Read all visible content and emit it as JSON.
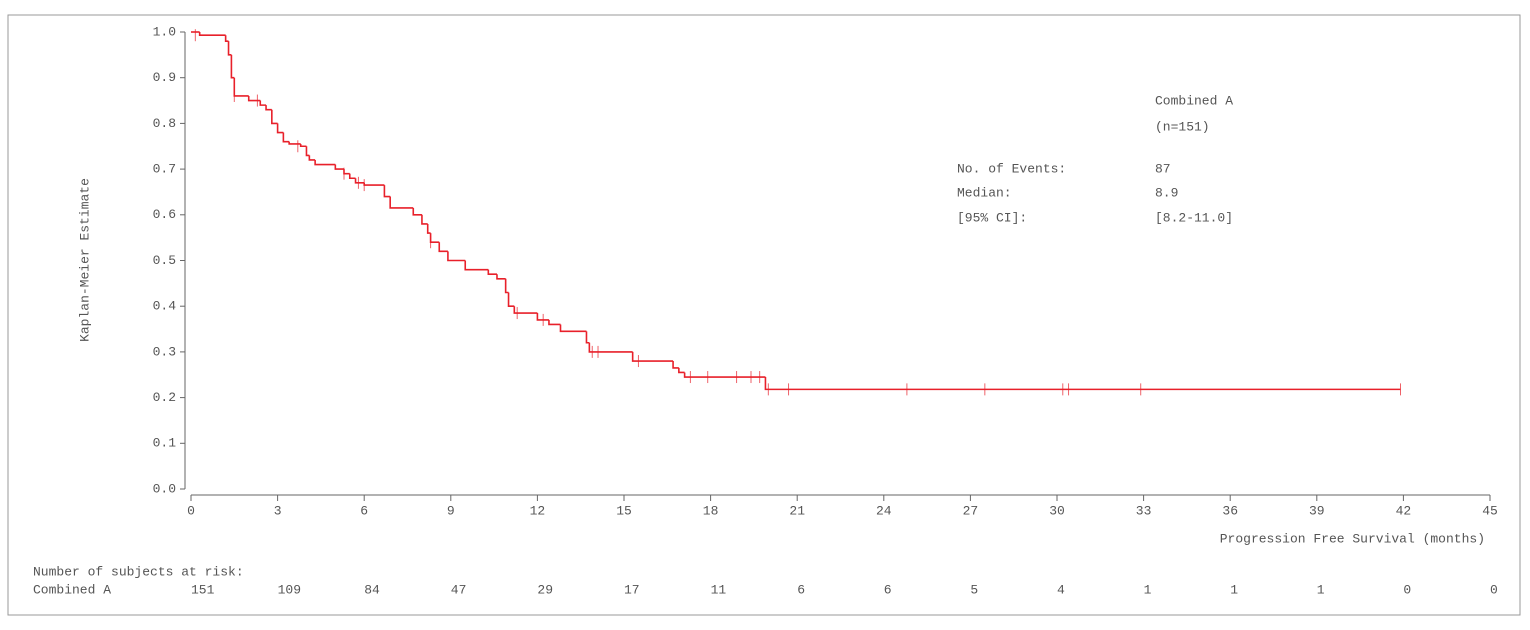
{
  "chart_data": {
    "type": "step",
    "ylabel": "Kaplan-Meier Estimate",
    "xlabel": "Progression Free Survival (months)",
    "xlim": [
      0,
      45
    ],
    "xticks": [
      0,
      3,
      6,
      9,
      12,
      15,
      18,
      21,
      24,
      27,
      30,
      33,
      36,
      39,
      42,
      45
    ],
    "ylim": [
      0,
      1
    ],
    "yticks": [
      {
        "value": 0,
        "label": "0.0"
      },
      0.1,
      0.2,
      0.3,
      0.4,
      0.5,
      0.6,
      0.7,
      0.8,
      0.9,
      {
        "value": 1,
        "label": "1.0"
      }
    ],
    "grid": false,
    "series": [
      {
        "name": "Combined A",
        "color": "#e8202a",
        "x": [
          0,
          0.3,
          1.2,
          1.3,
          1.4,
          1.5,
          2.0,
          2.4,
          2.6,
          2.8,
          3.0,
          3.2,
          3.4,
          3.8,
          4.0,
          4.1,
          4.3,
          5.0,
          5.3,
          5.5,
          5.7,
          6.0,
          6.7,
          6.9,
          7.7,
          8.0,
          8.2,
          8.3,
          8.6,
          8.9,
          9.5,
          10.3,
          10.6,
          10.9,
          11.0,
          11.2,
          12.0,
          12.4,
          12.8,
          13.7,
          13.8,
          15.3,
          16.7,
          16.9,
          17.1,
          19.9,
          41.9
        ],
        "values": [
          1.0,
          0.993,
          0.98,
          0.95,
          0.9,
          0.86,
          0.85,
          0.84,
          0.83,
          0.8,
          0.78,
          0.76,
          0.755,
          0.75,
          0.73,
          0.72,
          0.71,
          0.7,
          0.69,
          0.68,
          0.67,
          0.665,
          0.64,
          0.615,
          0.6,
          0.58,
          0.56,
          0.54,
          0.52,
          0.5,
          0.48,
          0.47,
          0.46,
          0.43,
          0.4,
          0.385,
          0.37,
          0.36,
          0.345,
          0.32,
          0.3,
          0.28,
          0.265,
          0.255,
          0.245,
          0.218,
          0.218
        ],
        "censored_x": [
          0.15,
          1.5,
          2.3,
          3.7,
          5.3,
          5.8,
          6.0,
          8.3,
          11.3,
          12.2,
          13.9,
          14.1,
          15.5,
          17.3,
          17.9,
          18.9,
          19.4,
          19.7,
          20.0,
          20.7,
          24.8,
          27.5,
          30.2,
          30.4,
          32.9,
          41.9
        ],
        "censored_y": [
          0.993,
          0.86,
          0.85,
          0.75,
          0.69,
          0.67,
          0.665,
          0.54,
          0.385,
          0.37,
          0.3,
          0.3,
          0.28,
          0.245,
          0.245,
          0.245,
          0.245,
          0.245,
          0.218,
          0.218,
          0.218,
          0.218,
          0.218,
          0.218,
          0.218,
          0.218
        ]
      }
    ],
    "stats": {
      "group": "Combined A",
      "n": "(n=151)",
      "events_label": "No. of Events:",
      "events": 87,
      "median_label": "Median:",
      "median": 8.9,
      "ci_label": "[95% CI]:",
      "ci": "[8.2-11.0]"
    },
    "risk_table": {
      "title": "Number of subjects at risk:",
      "group": "Combined A",
      "counts": [
        151,
        109,
        84,
        47,
        29,
        17,
        11,
        6,
        6,
        5,
        4,
        1,
        1,
        1,
        0,
        0
      ]
    }
  }
}
